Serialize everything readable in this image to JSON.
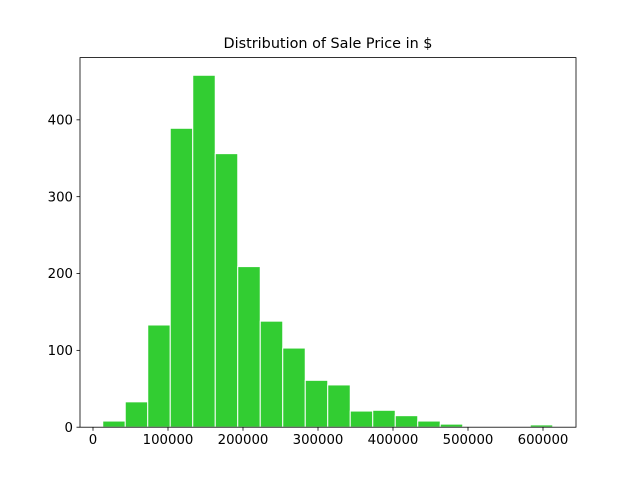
{
  "chart_data": {
    "type": "bar",
    "subtype": "histogram",
    "title": "Distribution of Sale Price in $",
    "xlabel": "",
    "ylabel": "",
    "bin_edges": [
      13000,
      43000,
      73000,
      103000,
      133000,
      163000,
      193000,
      223000,
      253000,
      283000,
      313000,
      343000,
      373000,
      403000,
      433000,
      463000,
      493000,
      523000,
      553000,
      583000,
      613000
    ],
    "values": [
      8,
      33,
      133,
      389,
      458,
      356,
      209,
      138,
      103,
      61,
      55,
      21,
      22,
      15,
      8,
      4,
      1,
      1,
      1,
      3
    ],
    "xlim": [
      -17333,
      644000
    ],
    "ylim": [
      0,
      481
    ],
    "xticks": [
      0,
      100000,
      200000,
      300000,
      400000,
      500000,
      600000
    ],
    "xtick_labels": [
      "0",
      "100000",
      "200000",
      "300000",
      "400000",
      "500000",
      "600000"
    ],
    "yticks": [
      0,
      100,
      200,
      300,
      400
    ],
    "ytick_labels": [
      "0",
      "100",
      "200",
      "300",
      "400"
    ],
    "grid": false,
    "legend": null,
    "colors": {
      "bar_fill": "#32CD32",
      "bar_edge": "#ffffff",
      "axes": "#000000"
    }
  }
}
